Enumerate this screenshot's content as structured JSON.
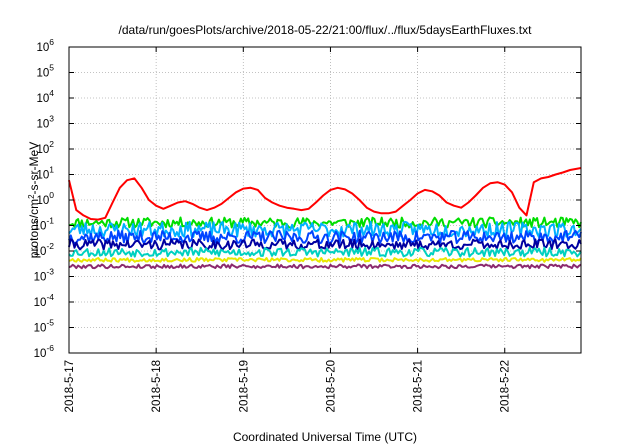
{
  "chart_data": {
    "type": "line",
    "title": "/data/run/goesPlots/archive/2018-05-22/21:00/flux/../flux/5daysEarthFluxes.txt",
    "xlabel": "Coordinated Universal Time (UTC)",
    "ylabel": "protons/cm2-s-sr-MeV",
    "y_scale": "log",
    "ylim": [
      1e-06,
      1000000.0
    ],
    "xlim": [
      "2018-05-17 00:00",
      "2018-05-22 21:00"
    ],
    "grid": true,
    "legend": "none",
    "x_ticks": [
      "2018-5-17",
      "2018-5-18",
      "2018-5-19",
      "2018-5-20",
      "2018-5-21",
      "2018-5-22"
    ],
    "y_ticks": [
      {
        "base": "10",
        "exp": "-6"
      },
      {
        "base": "10",
        "exp": "-5"
      },
      {
        "base": "10",
        "exp": "-4"
      },
      {
        "base": "10",
        "exp": "-3"
      },
      {
        "base": "10",
        "exp": "-2"
      },
      {
        "base": "10",
        "exp": "-1"
      },
      {
        "base": "10",
        "exp": "0"
      },
      {
        "base": "10",
        "exp": "1"
      },
      {
        "base": "10",
        "exp": "2"
      },
      {
        "base": "10",
        "exp": "3"
      },
      {
        "base": "10",
        "exp": "4"
      },
      {
        "base": "10",
        "exp": "5"
      },
      {
        "base": "10",
        "exp": "6"
      }
    ],
    "series": [
      {
        "color": "#ff0000",
        "x_hours": [
          0,
          2,
          4,
          6,
          8,
          10,
          12,
          14,
          16,
          18,
          20,
          22,
          24,
          26,
          28,
          30,
          32,
          34,
          36,
          38,
          40,
          42,
          44,
          46,
          48,
          50,
          52,
          54,
          56,
          58,
          60,
          62,
          64,
          66,
          68,
          70,
          72,
          74,
          76,
          78,
          80,
          82,
          84,
          86,
          88,
          90,
          92,
          94,
          96,
          98,
          100,
          102,
          104,
          106,
          108,
          110,
          112,
          114,
          116,
          118,
          120,
          122,
          124,
          126,
          128,
          130,
          132,
          134,
          136,
          138,
          141
        ],
        "values": [
          6,
          0.4,
          0.25,
          0.18,
          0.17,
          0.2,
          0.8,
          3,
          6,
          7,
          3,
          1,
          0.6,
          0.45,
          0.6,
          0.8,
          0.9,
          0.7,
          0.5,
          0.4,
          0.5,
          0.7,
          1.2,
          2,
          2.8,
          3,
          2.5,
          1.2,
          0.8,
          0.6,
          0.5,
          0.45,
          0.4,
          0.45,
          0.8,
          1.5,
          2.5,
          3,
          2.6,
          1.8,
          1,
          0.5,
          0.35,
          0.3,
          0.3,
          0.35,
          0.6,
          1,
          1.8,
          2.5,
          2.2,
          1.5,
          0.8,
          0.6,
          0.5,
          0.8,
          1.5,
          3,
          4.5,
          5,
          4,
          2,
          0.5,
          0.25,
          5,
          7,
          8,
          10,
          12,
          15,
          18
        ]
      },
      {
        "color": "#00dd00",
        "x_hours": [
          0,
          141
        ],
        "values": [
          0.13,
          0.13
        ],
        "noise": 0.4,
        "seed": 11
      },
      {
        "color": "#00b0ff",
        "x_hours": [
          0,
          141
        ],
        "values": [
          0.07,
          0.07
        ],
        "noise": 0.6,
        "seed": 23
      },
      {
        "color": "#0044ff",
        "x_hours": [
          0,
          141
        ],
        "values": [
          0.035,
          0.035
        ],
        "noise": 0.5,
        "seed": 37
      },
      {
        "color": "#0000a0",
        "x_hours": [
          0,
          141
        ],
        "values": [
          0.018,
          0.018
        ],
        "noise": 0.4,
        "seed": 41
      },
      {
        "color": "#00d0c0",
        "x_hours": [
          0,
          141
        ],
        "values": [
          0.009,
          0.009
        ],
        "noise": 0.35,
        "seed": 53
      },
      {
        "color": "#e8e800",
        "x_hours": [
          0,
          141
        ],
        "values": [
          0.0045,
          0.0045
        ],
        "noise": 0.15,
        "seed": 67
      },
      {
        "color": "#8b2a6e",
        "x_hours": [
          0,
          141
        ],
        "values": [
          0.0025,
          0.0025
        ],
        "noise": 0.15,
        "seed": 79
      }
    ]
  }
}
